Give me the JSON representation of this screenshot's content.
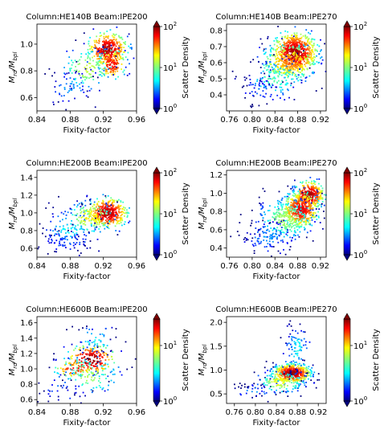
{
  "chart_data": [
    {
      "type": "scatter",
      "title": "Column:HE140B   Beam:IPE200",
      "xlabel": "Fixity-factor",
      "ylabel": "M_rd/M_bpl",
      "xlim": [
        0.84,
        0.96
      ],
      "ylim": [
        0.5,
        1.15
      ],
      "xticks": [
        "0.84",
        "0.88",
        "0.92",
        "0.96"
      ],
      "yticks": [
        "0.6",
        "0.8",
        "1.0"
      ],
      "colorbar": {
        "label": "Scatter Density",
        "scale": "log",
        "ticks": [
          "10^0",
          "10^1",
          "10^2"
        ],
        "range": [
          1,
          100
        ]
      },
      "clusters": [
        {
          "x": 0.925,
          "y": 0.96,
          "sx": 0.011,
          "sy": 0.06,
          "n": 360,
          "density": 80
        },
        {
          "x": 0.93,
          "y": 0.85,
          "sx": 0.008,
          "sy": 0.05,
          "n": 150,
          "density": 60
        },
        {
          "x": 0.9,
          "y": 0.82,
          "sx": 0.015,
          "sy": 0.08,
          "n": 110,
          "density": 14
        },
        {
          "x": 0.88,
          "y": 0.68,
          "sx": 0.015,
          "sy": 0.07,
          "n": 60,
          "density": 3
        }
      ]
    },
    {
      "type": "scatter",
      "title": "Column:HE140B   Beam:IPE270",
      "xlabel": "Fixity-factor",
      "ylabel": "M_rd/M_bpl",
      "xlim": [
        0.755,
        0.93
      ],
      "ylim": [
        0.3,
        0.84
      ],
      "xticks": [
        "0.76",
        "0.80",
        "0.84",
        "0.88",
        "0.92"
      ],
      "yticks": [
        "0.4",
        "0.5",
        "0.6",
        "0.7",
        "0.8"
      ],
      "colorbar": {
        "label": "Scatter Density",
        "scale": "log",
        "ticks": [
          "10^0",
          "10^1",
          "10^2"
        ],
        "range": [
          1,
          100
        ]
      },
      "clusters": [
        {
          "x": 0.875,
          "y": 0.66,
          "sx": 0.018,
          "sy": 0.06,
          "n": 700,
          "density": 85
        },
        {
          "x": 0.865,
          "y": 0.6,
          "sx": 0.025,
          "sy": 0.06,
          "n": 260,
          "density": 30
        },
        {
          "x": 0.84,
          "y": 0.5,
          "sx": 0.025,
          "sy": 0.06,
          "n": 120,
          "density": 8
        },
        {
          "x": 0.815,
          "y": 0.43,
          "sx": 0.02,
          "sy": 0.05,
          "n": 50,
          "density": 2
        }
      ]
    },
    {
      "type": "scatter",
      "title": "Column:HE200B   Beam:IPE200",
      "xlabel": "Fixity-factor",
      "ylabel": "M_rd/M_bpl",
      "xlim": [
        0.84,
        0.96
      ],
      "ylim": [
        0.5,
        1.48
      ],
      "xticks": [
        "0.84",
        "0.88",
        "0.92",
        "0.96"
      ],
      "yticks": [
        "0.6",
        "0.8",
        "1.0",
        "1.2",
        "1.4"
      ],
      "colorbar": {
        "label": "Scatter Density",
        "scale": "log",
        "ticks": [
          "10^0",
          "10^1",
          "10^2"
        ],
        "range": [
          1,
          100
        ]
      },
      "clusters": [
        {
          "x": 0.925,
          "y": 1.0,
          "sx": 0.011,
          "sy": 0.08,
          "n": 420,
          "density": 80
        },
        {
          "x": 0.905,
          "y": 0.95,
          "sx": 0.014,
          "sy": 0.09,
          "n": 150,
          "density": 20
        },
        {
          "x": 0.88,
          "y": 0.82,
          "sx": 0.018,
          "sy": 0.12,
          "n": 110,
          "density": 5
        },
        {
          "x": 0.875,
          "y": 0.68,
          "sx": 0.018,
          "sy": 0.08,
          "n": 60,
          "density": 2
        }
      ]
    },
    {
      "type": "scatter",
      "title": "Column:HE200B   Beam:IPE270",
      "xlabel": "Fixity-factor",
      "ylabel": "M_rd/M_bpl",
      "xlim": [
        0.755,
        0.93
      ],
      "ylim": [
        0.3,
        1.25
      ],
      "xticks": [
        "0.76",
        "0.80",
        "0.84",
        "0.88",
        "0.92"
      ],
      "yticks": [
        "0.4",
        "0.6",
        "0.8",
        "1.0",
        "1.2"
      ],
      "colorbar": {
        "label": "Scatter Density",
        "scale": "log",
        "ticks": [
          "10^0",
          "10^1",
          "10^2"
        ],
        "range": [
          1,
          100
        ]
      },
      "clusters": [
        {
          "x": 0.9,
          "y": 0.98,
          "sx": 0.012,
          "sy": 0.07,
          "n": 350,
          "density": 85
        },
        {
          "x": 0.885,
          "y": 0.82,
          "sx": 0.015,
          "sy": 0.09,
          "n": 420,
          "density": 65
        },
        {
          "x": 0.86,
          "y": 0.72,
          "sx": 0.025,
          "sy": 0.12,
          "n": 280,
          "density": 12
        },
        {
          "x": 0.83,
          "y": 0.52,
          "sx": 0.025,
          "sy": 0.1,
          "n": 110,
          "density": 3
        }
      ]
    },
    {
      "type": "scatter",
      "title": "Column:HE600B   Beam:IPE200",
      "xlabel": "Fixity-factor",
      "ylabel": "M_rd/M_bpl",
      "xlim": [
        0.84,
        0.96
      ],
      "ylim": [
        0.55,
        1.68
      ],
      "xticks": [
        "0.84",
        "0.88",
        "0.92",
        "0.96"
      ],
      "yticks": [
        "0.6",
        "0.8",
        "1.0",
        "1.2",
        "1.4",
        "1.6"
      ],
      "colorbar": {
        "label": "Scatter Density",
        "scale": "log",
        "ticks": [
          "10^0",
          "10^1"
        ],
        "range": [
          1,
          30
        ]
      },
      "clusters": [
        {
          "x": 0.905,
          "y": 1.12,
          "sx": 0.015,
          "sy": 0.1,
          "n": 230,
          "density": 28
        },
        {
          "x": 0.885,
          "y": 1.0,
          "sx": 0.012,
          "sy": 0.06,
          "n": 80,
          "density": 20
        },
        {
          "x": 0.905,
          "y": 0.92,
          "sx": 0.02,
          "sy": 0.14,
          "n": 90,
          "density": 6
        },
        {
          "x": 0.91,
          "y": 1.38,
          "sx": 0.015,
          "sy": 0.11,
          "n": 50,
          "density": 3
        },
        {
          "x": 0.87,
          "y": 0.72,
          "sx": 0.015,
          "sy": 0.09,
          "n": 30,
          "density": 1.5
        }
      ]
    },
    {
      "type": "scatter",
      "title": "Column:HE600B   Beam:IPE270",
      "xlabel": "Fixity-factor",
      "ylabel": "M_rd/M_bpl",
      "xlim": [
        0.745,
        0.935
      ],
      "ylim": [
        0.3,
        2.12
      ],
      "xticks": [
        "0.76",
        "0.80",
        "0.84",
        "0.88",
        "0.92"
      ],
      "yticks": [
        "0.5",
        "1.0",
        "1.5",
        "2.0"
      ],
      "colorbar": {
        "label": "Scatter Density",
        "scale": "log",
        "ticks": [
          "10^0",
          "10^1"
        ],
        "range": [
          1,
          30
        ]
      },
      "clusters": [
        {
          "x": 0.87,
          "y": 0.93,
          "sx": 0.018,
          "sy": 0.1,
          "n": 520,
          "density": 28
        },
        {
          "x": 0.85,
          "y": 0.75,
          "sx": 0.025,
          "sy": 0.12,
          "n": 140,
          "density": 8
        },
        {
          "x": 0.88,
          "y": 1.45,
          "sx": 0.013,
          "sy": 0.3,
          "n": 90,
          "density": 3
        },
        {
          "x": 0.8,
          "y": 0.55,
          "sx": 0.025,
          "sy": 0.1,
          "n": 40,
          "density": 1.5
        }
      ]
    }
  ]
}
